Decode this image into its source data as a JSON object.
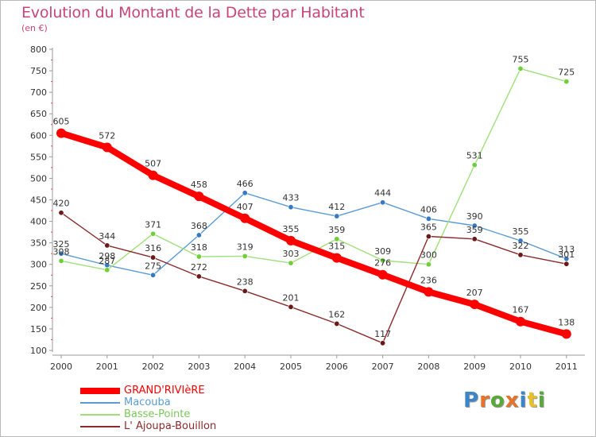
{
  "title": "Evolution du Montant de la Dette par Habitant",
  "subtitle": "(en €)",
  "logo": {
    "text": "Proxiti",
    "letter_colors": [
      "#3a86c8",
      "#e8722c",
      "#5aa83a",
      "#e8722c",
      "#3a86c8",
      "#e8c02c",
      "#5aa83a"
    ]
  },
  "chart_data": {
    "type": "line",
    "title": "Evolution du Montant de la Dette par Habitant",
    "subtitle": "(en €)",
    "xlabel": "",
    "ylabel": "",
    "categories": [
      "2000",
      "2001",
      "2002",
      "2003",
      "2004",
      "2005",
      "2006",
      "2007",
      "2008",
      "2009",
      "2010",
      "2011"
    ],
    "ylim": [
      100,
      800
    ],
    "yticks": [
      100,
      150,
      200,
      250,
      300,
      350,
      400,
      450,
      500,
      550,
      600,
      650,
      700,
      750,
      800
    ],
    "grid": false,
    "legend_position": "bottom-left",
    "series": [
      {
        "name": "GRAND'RIVIèRE",
        "color": "#ff0000",
        "emphasis": true,
        "values": [
          605,
          572,
          507,
          458,
          407,
          355,
          315,
          276,
          236,
          207,
          167,
          138
        ],
        "labels": [
          "605",
          "572",
          "507",
          "458",
          "407",
          "355",
          "315",
          "276",
          "236",
          "207",
          "167",
          "138"
        ]
      },
      {
        "name": "Macouba",
        "color": "#5b9bd5",
        "marker_color": "#3a78c4",
        "values": [
          325,
          298,
          275,
          368,
          466,
          433,
          412,
          444,
          406,
          390,
          355,
          313
        ],
        "labels": [
          "325",
          "298",
          "275",
          "368",
          "466",
          "433",
          "412",
          "444",
          "406",
          "390",
          "355",
          "313"
        ]
      },
      {
        "name": "Basse-Pointe",
        "color": "#9fe07a",
        "marker_color": "#6fcf3a",
        "values": [
          308,
          287,
          371,
          318,
          319,
          303,
          359,
          309,
          300,
          531,
          755,
          725
        ],
        "labels": [
          "308",
          "287",
          "371",
          "318",
          "319",
          "303",
          "359",
          "309",
          "300",
          "531",
          "755",
          "725"
        ]
      },
      {
        "name": "L' Ajoupa-Bouillon",
        "color": "#8b2a2a",
        "marker_color": "#6a1818",
        "values": [
          420,
          344,
          316,
          272,
          238,
          201,
          162,
          117,
          365,
          359,
          322,
          301
        ],
        "labels": [
          "420",
          "344",
          "316",
          "272",
          "238",
          "201",
          "162",
          "117",
          "365",
          "359",
          "322",
          "301"
        ]
      }
    ]
  }
}
